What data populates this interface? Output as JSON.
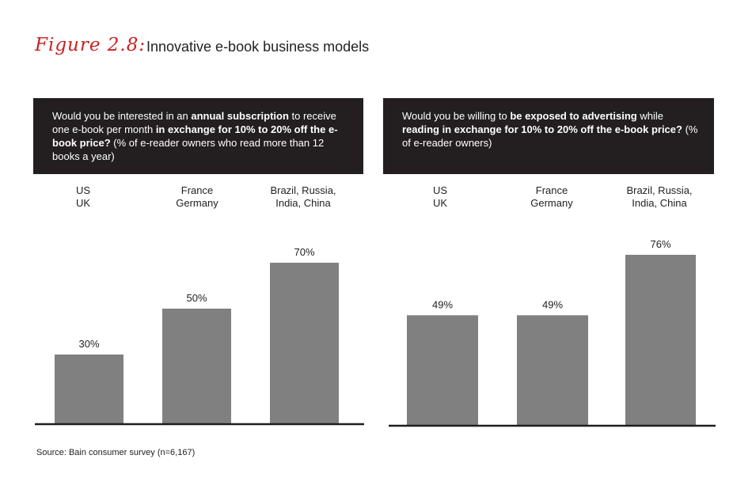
{
  "figure": {
    "label": "Figure 2.8:",
    "title": "Innovative e-book business models"
  },
  "source": "Source: Bain consumer survey (n=6,167)",
  "colors": {
    "bar": "#808080",
    "panel": "#231f20",
    "accent": "#cc1f1f",
    "axis": "#1e1e1e"
  },
  "chart_data": [
    {
      "type": "bar",
      "question": [
        {
          "text": "Would you be interested in an ",
          "bold": false
        },
        {
          "text": "annual subscription",
          "bold": true
        },
        {
          "text": " to receive one e-book per month ",
          "bold": false
        },
        {
          "text": "in exchange for 10% to 20% off the e-book price?",
          "bold": true
        },
        {
          "text": " (% of e-reader owners who read more than 12 books a year)",
          "bold": false
        }
      ],
      "categories": [
        [
          "US",
          "UK"
        ],
        [
          "France",
          "Germany"
        ],
        [
          "Brazil, Russia,",
          "India, China"
        ]
      ],
      "values": [
        30,
        50,
        70
      ],
      "value_labels": [
        "30%",
        "50%",
        "70%"
      ],
      "ylim": [
        0,
        70
      ]
    },
    {
      "type": "bar",
      "question": [
        {
          "text": "Would you be willing to ",
          "bold": false
        },
        {
          "text": "be exposed to advertising",
          "bold": true
        },
        {
          "text": " while ",
          "bold": false
        },
        {
          "text": "reading in exchange for 10% to 20% off the e-book price?",
          "bold": true
        },
        {
          "text": " (% of e-reader owners)",
          "bold": false
        }
      ],
      "categories": [
        [
          "US",
          "UK"
        ],
        [
          "France",
          "Germany"
        ],
        [
          "Brazil, Russia,",
          "India, China"
        ]
      ],
      "values": [
        49,
        49,
        76
      ],
      "value_labels": [
        "49%",
        "49%",
        "76%"
      ],
      "ylim": [
        0,
        76
      ]
    }
  ]
}
